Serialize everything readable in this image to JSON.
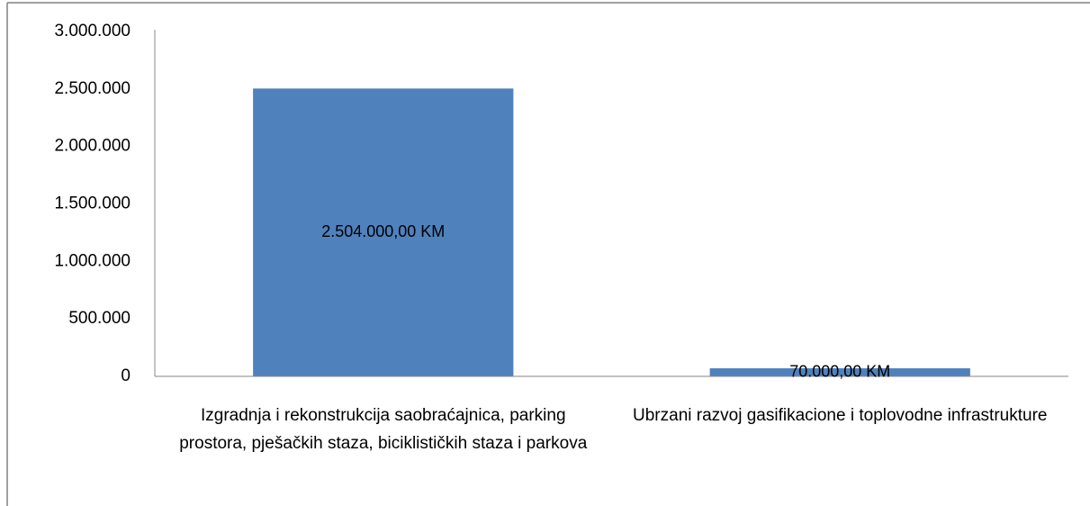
{
  "chart_data": {
    "type": "bar",
    "categories": [
      "Izgradnja i rekonstrukcija saobraćajnica, parking prostora, pješačkih staza, biciklističkih staza i parkova",
      "Ubrzani razvoj gasifikacione i toplovodne infrastrukture"
    ],
    "values": [
      2504000,
      70000
    ],
    "value_labels": [
      "2.504.000,00 KM",
      "70.000,00 KM"
    ],
    "color": "#4f81bd",
    "ylim": [
      0,
      3000000
    ],
    "yticks": [
      0,
      {
        "value": 500000,
        "label": "500.000"
      },
      {
        "value": 1000000,
        "label": "1.000.000"
      },
      {
        "value": 1500000,
        "label": "1.500.000"
      },
      {
        "value": 2000000,
        "label": "2.000.000"
      },
      {
        "value": 2500000,
        "label": "2.500.000"
      },
      {
        "value": 3000000,
        "label": "3.000.000"
      }
    ],
    "grid": false
  }
}
